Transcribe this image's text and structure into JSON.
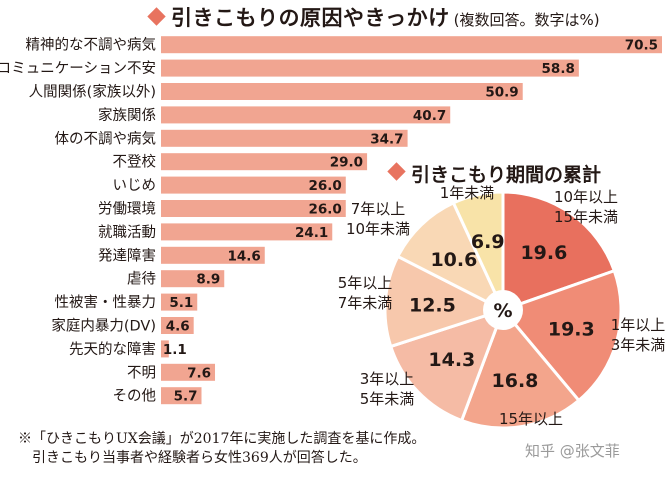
{
  "bar_header": {
    "title": "引きこもりの原因やきっかけ",
    "subtitle": "(複数回答。数字は%)"
  },
  "pie_header": {
    "title": "引きこもり期間の累計"
  },
  "footnote": {
    "line1": "※「ひきこもりUX会議」が2017年に実施した調査を基に作成。",
    "line2": "引きこもり当事者や経験者ら女性369人が回答した。"
  },
  "watermark": "知乎 @张文菲",
  "colors": {
    "bar": "#f1a591",
    "accent": "#e8735f",
    "pie_border": "#ffffff"
  },
  "chart_data": [
    {
      "type": "bar",
      "orientation": "horizontal",
      "title": "引きこもりの原因やきっかけ",
      "subtitle": "(複数回答。数字は%)",
      "categories": [
        "精神的な不調や病気",
        "コミュニケーション不安",
        "人間関係(家族以外)",
        "家族関係",
        "体の不調や病気",
        "不登校",
        "いじめ",
        "労働環境",
        "就職活動",
        "発達障害",
        "虐待",
        "性被害・性暴力",
        "家庭内暴力(DV)",
        "先天的な障害",
        "不明",
        "その他"
      ],
      "values": [
        70.5,
        58.8,
        50.9,
        40.7,
        34.7,
        29.0,
        26.0,
        26.0,
        24.1,
        14.6,
        8.9,
        5.1,
        4.6,
        1.1,
        7.6,
        5.7
      ],
      "value_labels": [
        "70.5",
        "58.8",
        "50.9",
        "40.7",
        "34.7",
        "29.0",
        "26.0",
        "26.0",
        "24.1",
        "14.6",
        "8.9",
        "5.1",
        "4.6",
        "1.1",
        "7.6",
        "5.7"
      ],
      "xlim": [
        0,
        70.5
      ],
      "grid": false
    },
    {
      "type": "pie",
      "title": "引きこもり期間の累計",
      "center_label": "%",
      "categories": [
        "10年以上15年未満",
        "1年以上3年未満",
        "15年以上",
        "3年以上5年未満",
        "5年以上7年未満",
        "7年以上10年未満",
        "1年未満"
      ],
      "values": [
        19.6,
        19.3,
        16.8,
        14.3,
        12.5,
        10.6,
        6.9
      ],
      "value_labels": [
        "19.6",
        "19.3",
        "16.8",
        "14.3",
        "12.5",
        "10.6",
        "6.9"
      ],
      "outer_labels": [
        [
          "10年以上",
          "15年未満"
        ],
        [
          "1年以上",
          "3年未満"
        ],
        [
          "15年以上"
        ],
        [
          "3年以上",
          "5年未満"
        ],
        [
          "5年以上",
          "7年未満"
        ],
        [
          "7年以上",
          "10年未満"
        ],
        [
          "1年未満"
        ]
      ],
      "colors": [
        "#e8705e",
        "#f08c76",
        "#f3a58c",
        "#f5bba5",
        "#f7c8ac",
        "#f9d8b5",
        "#f8e3a8"
      ]
    }
  ]
}
